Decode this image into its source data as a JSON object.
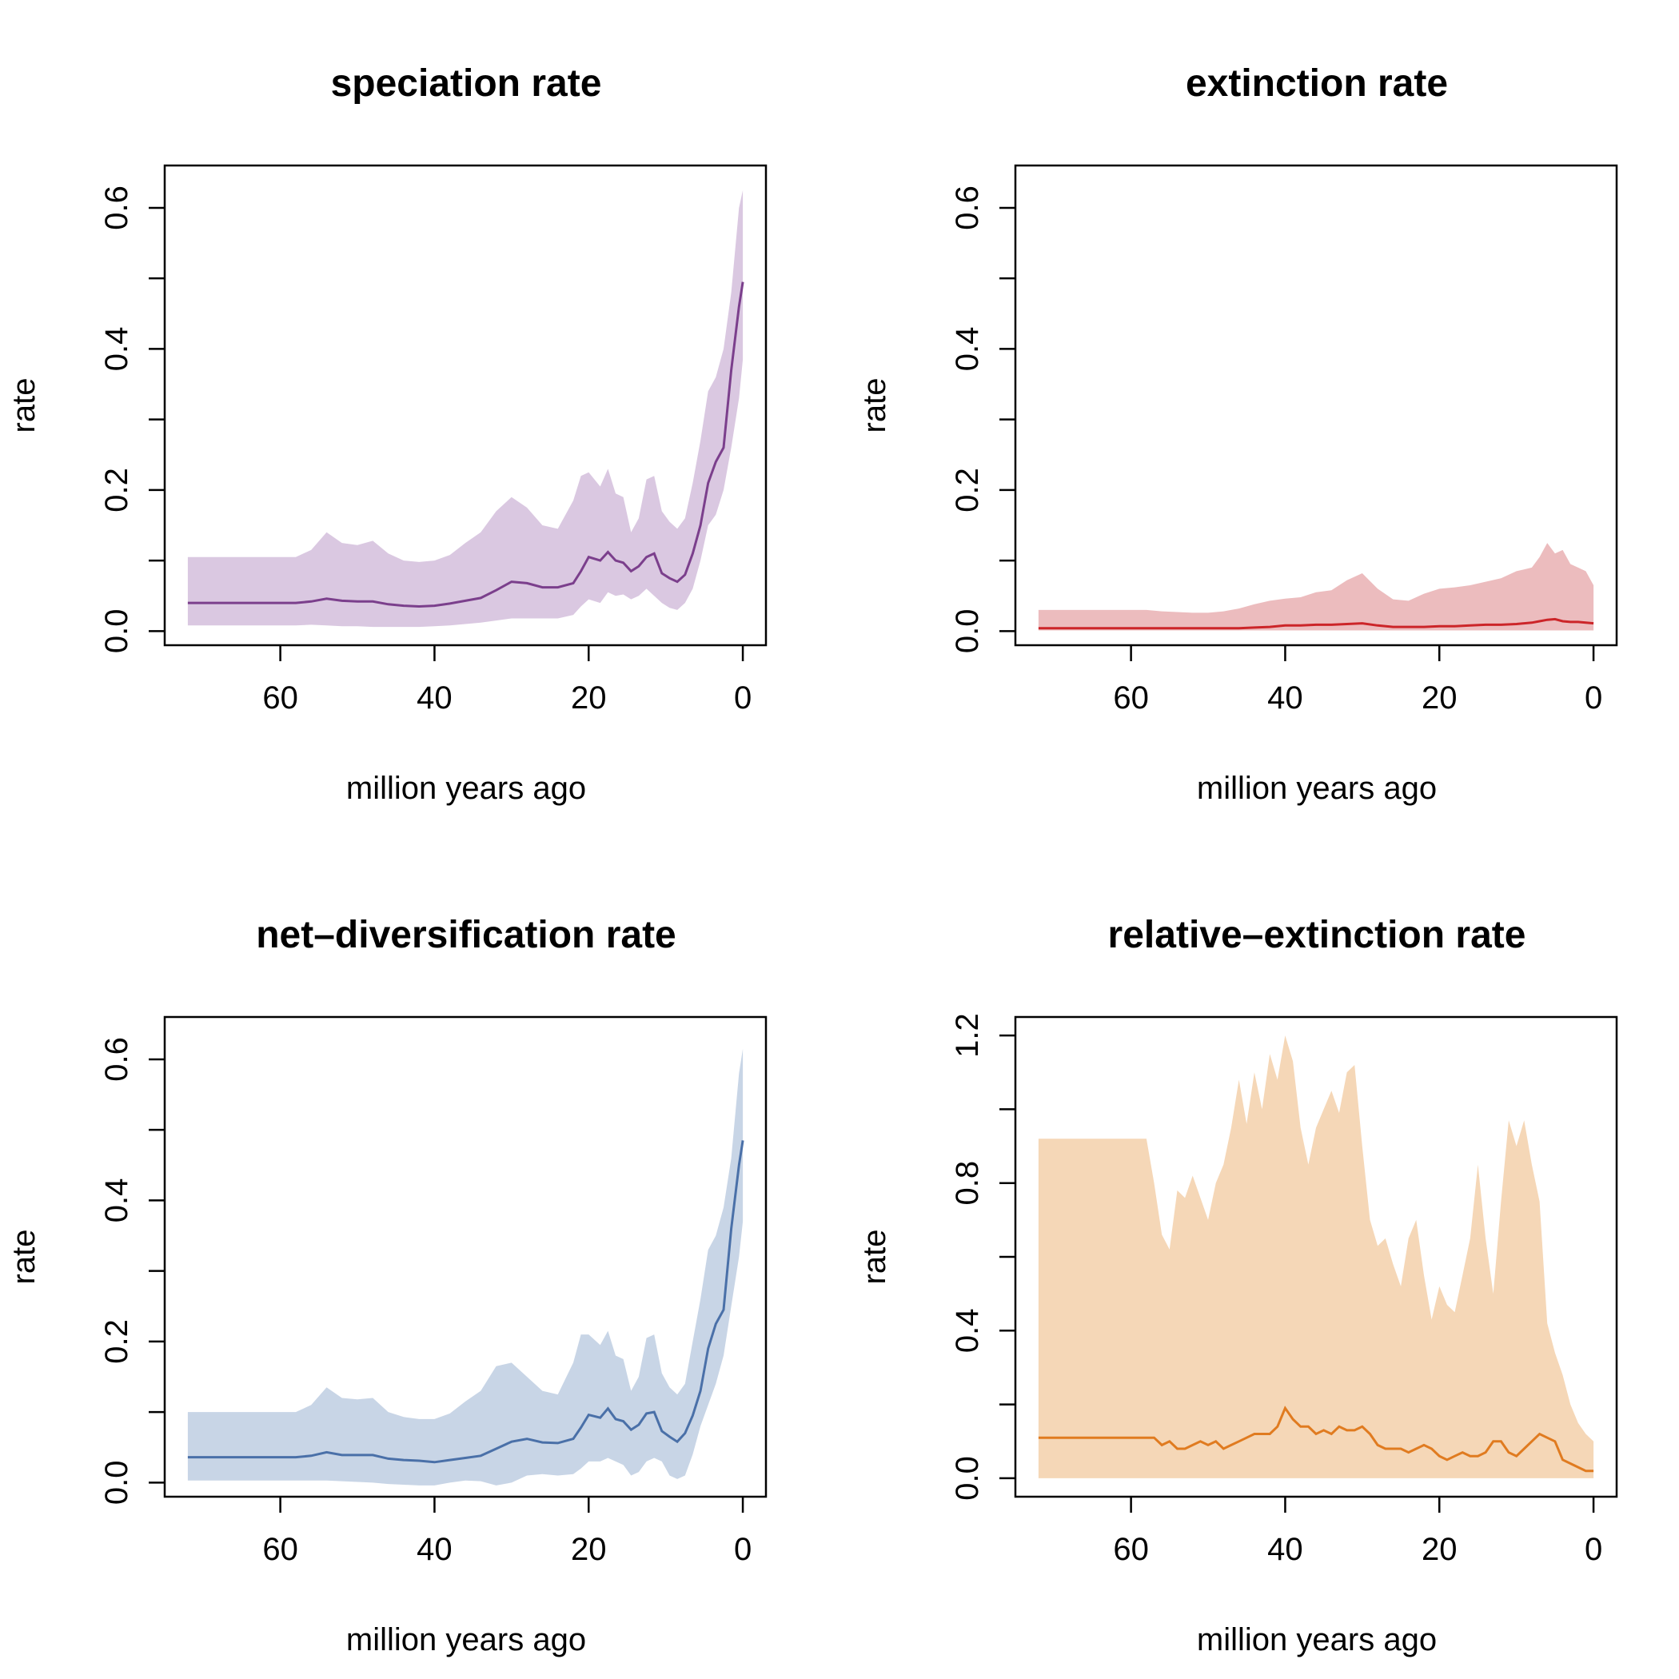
{
  "chart_data": [
    {
      "type": "area",
      "title": "speciation rate",
      "xlabel": "million years ago",
      "ylabel": "rate",
      "xlim": [
        75,
        -3
      ],
      "ylim": [
        -0.02,
        0.66
      ],
      "xticks": [
        60,
        40,
        20,
        0
      ],
      "xtick_labels": [
        "60",
        "40",
        "20",
        "0"
      ],
      "yticks": [
        0.0,
        0.1,
        0.2,
        0.3,
        0.4,
        0.5,
        0.6
      ],
      "ytick_labels": [
        "0.0",
        "",
        "0.2",
        "",
        "0.4",
        "",
        "0.6"
      ],
      "colors": {
        "line": "#7b3f8c",
        "band": "#dac8e1"
      },
      "series": [
        {
          "x": [
            72,
            58,
            56,
            54,
            52,
            50,
            48,
            46,
            44,
            42,
            40,
            38,
            36,
            34,
            32,
            30,
            28,
            26,
            24,
            22,
            21,
            20,
            18.5,
            17.5,
            16.5,
            15.5,
            14.5,
            13.5,
            12.5,
            11.5,
            10.5,
            9.5,
            8.5,
            7.5,
            6.5,
            5.5,
            4.5,
            3.5,
            2.5,
            1.5,
            0.5,
            0
          ],
          "values": [
            0.04,
            0.04,
            0.042,
            0.046,
            0.043,
            0.042,
            0.042,
            0.038,
            0.036,
            0.035,
            0.036,
            0.039,
            0.043,
            0.047,
            0.058,
            0.07,
            0.068,
            0.062,
            0.062,
            0.068,
            0.085,
            0.105,
            0.1,
            0.112,
            0.1,
            0.097,
            0.085,
            0.092,
            0.105,
            0.11,
            0.082,
            0.075,
            0.07,
            0.08,
            0.11,
            0.15,
            0.21,
            0.24,
            0.26,
            0.37,
            0.46,
            0.495
          ],
          "lower": [
            0.008,
            0.008,
            0.009,
            0.008,
            0.007,
            0.007,
            0.006,
            0.006,
            0.006,
            0.006,
            0.007,
            0.008,
            0.01,
            0.012,
            0.015,
            0.018,
            0.018,
            0.018,
            0.018,
            0.023,
            0.035,
            0.045,
            0.04,
            0.055,
            0.05,
            0.052,
            0.045,
            0.05,
            0.06,
            0.05,
            0.04,
            0.033,
            0.03,
            0.04,
            0.06,
            0.1,
            0.15,
            0.165,
            0.2,
            0.26,
            0.33,
            0.385
          ],
          "upper": [
            0.105,
            0.105,
            0.115,
            0.14,
            0.125,
            0.122,
            0.128,
            0.11,
            0.1,
            0.098,
            0.1,
            0.108,
            0.125,
            0.14,
            0.17,
            0.19,
            0.175,
            0.15,
            0.145,
            0.185,
            0.22,
            0.225,
            0.205,
            0.23,
            0.195,
            0.19,
            0.14,
            0.16,
            0.215,
            0.22,
            0.17,
            0.155,
            0.145,
            0.16,
            0.21,
            0.27,
            0.34,
            0.36,
            0.4,
            0.48,
            0.6,
            0.625
          ]
        }
      ]
    },
    {
      "type": "area",
      "title": "extinction rate",
      "xlabel": "million years ago",
      "ylabel": "rate",
      "xlim": [
        75,
        -3
      ],
      "ylim": [
        -0.02,
        0.66
      ],
      "xticks": [
        60,
        40,
        20,
        0
      ],
      "xtick_labels": [
        "60",
        "40",
        "20",
        "0"
      ],
      "yticks": [
        0.0,
        0.1,
        0.2,
        0.3,
        0.4,
        0.5,
        0.6
      ],
      "ytick_labels": [
        "0.0",
        "",
        "0.2",
        "",
        "0.4",
        "",
        "0.6"
      ],
      "colors": {
        "line": "#cc2529",
        "band": "#ecbcbe"
      },
      "series": [
        {
          "x": [
            72,
            58,
            56,
            54,
            52,
            50,
            48,
            46,
            44,
            42,
            40,
            38,
            36,
            34,
            32,
            30,
            28,
            26,
            24,
            22,
            20,
            18,
            16,
            14,
            12,
            10,
            8,
            7,
            6,
            5,
            4,
            3,
            2,
            1,
            0
          ],
          "values": [
            0.004,
            0.004,
            0.004,
            0.004,
            0.004,
            0.004,
            0.004,
            0.004,
            0.005,
            0.006,
            0.008,
            0.008,
            0.009,
            0.009,
            0.01,
            0.011,
            0.008,
            0.006,
            0.006,
            0.006,
            0.007,
            0.007,
            0.008,
            0.009,
            0.009,
            0.01,
            0.012,
            0.014,
            0.016,
            0.017,
            0.014,
            0.013,
            0.013,
            0.012,
            0.011
          ],
          "lower": [
            0.001,
            0.001,
            0.001,
            0.001,
            0.001,
            0.001,
            0.001,
            0.001,
            0.001,
            0.001,
            0.001,
            0.001,
            0.001,
            0.001,
            0.001,
            0.001,
            0.001,
            0.001,
            0.001,
            0.001,
            0.001,
            0.001,
            0.001,
            0.001,
            0.001,
            0.001,
            0.001,
            0.001,
            0.001,
            0.001,
            0.001,
            0.001,
            0.001,
            0.001,
            0.001
          ],
          "upper": [
            0.03,
            0.03,
            0.028,
            0.027,
            0.026,
            0.026,
            0.028,
            0.032,
            0.038,
            0.043,
            0.046,
            0.048,
            0.055,
            0.058,
            0.072,
            0.082,
            0.06,
            0.045,
            0.043,
            0.053,
            0.06,
            0.062,
            0.065,
            0.07,
            0.075,
            0.085,
            0.09,
            0.105,
            0.125,
            0.11,
            0.115,
            0.095,
            0.09,
            0.085,
            0.065
          ]
        }
      ]
    },
    {
      "type": "area",
      "title": "net–diversification rate",
      "xlabel": "million years ago",
      "ylabel": "rate",
      "xlim": [
        75,
        -3
      ],
      "ylim": [
        -0.02,
        0.66
      ],
      "xticks": [
        60,
        40,
        20,
        0
      ],
      "xtick_labels": [
        "60",
        "40",
        "20",
        "0"
      ],
      "yticks": [
        0.0,
        0.1,
        0.2,
        0.3,
        0.4,
        0.5,
        0.6
      ],
      "ytick_labels": [
        "0.0",
        "",
        "0.2",
        "",
        "0.4",
        "",
        "0.6"
      ],
      "colors": {
        "line": "#4a70a8",
        "band": "#c8d5e6"
      },
      "series": [
        {
          "x": [
            72,
            58,
            56,
            54,
            52,
            50,
            48,
            46,
            44,
            42,
            40,
            38,
            36,
            34,
            32,
            30,
            28,
            26,
            24,
            22,
            21,
            20,
            18.5,
            17.5,
            16.5,
            15.5,
            14.5,
            13.5,
            12.5,
            11.5,
            10.5,
            9.5,
            8.5,
            7.5,
            6.5,
            5.5,
            4.5,
            3.5,
            2.5,
            1.5,
            0.5,
            0
          ],
          "values": [
            0.036,
            0.036,
            0.038,
            0.043,
            0.039,
            0.039,
            0.039,
            0.034,
            0.032,
            0.031,
            0.029,
            0.032,
            0.035,
            0.038,
            0.048,
            0.058,
            0.062,
            0.057,
            0.056,
            0.062,
            0.078,
            0.096,
            0.092,
            0.105,
            0.09,
            0.087,
            0.075,
            0.082,
            0.098,
            0.1,
            0.073,
            0.065,
            0.058,
            0.07,
            0.095,
            0.13,
            0.19,
            0.225,
            0.245,
            0.36,
            0.45,
            0.485
          ],
          "lower": [
            0.003,
            0.003,
            0.003,
            0.003,
            0.002,
            0.001,
            0.0,
            -0.002,
            -0.003,
            -0.004,
            -0.004,
            0.0,
            0.003,
            0.002,
            -0.004,
            0.0,
            0.01,
            0.012,
            0.01,
            0.012,
            0.02,
            0.03,
            0.03,
            0.035,
            0.03,
            0.025,
            0.01,
            0.015,
            0.03,
            0.035,
            0.03,
            0.01,
            0.005,
            0.01,
            0.04,
            0.08,
            0.11,
            0.14,
            0.18,
            0.25,
            0.32,
            0.37
          ],
          "upper": [
            0.1,
            0.1,
            0.11,
            0.135,
            0.12,
            0.118,
            0.12,
            0.1,
            0.093,
            0.09,
            0.09,
            0.098,
            0.115,
            0.13,
            0.165,
            0.17,
            0.15,
            0.13,
            0.125,
            0.17,
            0.21,
            0.21,
            0.195,
            0.215,
            0.18,
            0.175,
            0.13,
            0.15,
            0.205,
            0.21,
            0.155,
            0.135,
            0.125,
            0.14,
            0.2,
            0.26,
            0.33,
            0.35,
            0.39,
            0.46,
            0.58,
            0.615
          ]
        }
      ]
    },
    {
      "type": "area",
      "title": "relative–extinction rate",
      "xlabel": "million years ago",
      "ylabel": "rate",
      "xlim": [
        75,
        -3
      ],
      "ylim": [
        -0.05,
        1.25
      ],
      "xticks": [
        60,
        40,
        20,
        0
      ],
      "xtick_labels": [
        "60",
        "40",
        "20",
        "0"
      ],
      "yticks": [
        0.0,
        0.2,
        0.4,
        0.6,
        0.8,
        1.0,
        1.2
      ],
      "ytick_labels": [
        "0.0",
        "",
        "0.4",
        "",
        "0.8",
        "",
        "1.2"
      ],
      "colors": {
        "line": "#e07b20",
        "band": "#f5d7b7"
      },
      "series": [
        {
          "x": [
            72,
            58,
            57,
            56,
            55,
            54,
            53,
            52,
            51,
            50,
            49,
            48,
            47,
            46,
            45,
            44,
            43,
            42,
            41,
            40,
            39,
            38,
            37,
            36,
            35,
            34,
            33,
            32,
            31,
            30,
            29,
            28,
            27,
            26,
            25,
            24,
            23,
            22,
            21,
            20,
            19,
            18,
            17,
            16,
            15,
            14,
            13,
            12,
            11,
            10,
            9,
            8,
            7,
            6,
            5,
            4,
            3,
            2,
            1,
            0
          ],
          "values": [
            0.11,
            0.11,
            0.11,
            0.09,
            0.1,
            0.08,
            0.08,
            0.09,
            0.1,
            0.09,
            0.1,
            0.08,
            0.09,
            0.1,
            0.11,
            0.12,
            0.12,
            0.12,
            0.14,
            0.19,
            0.16,
            0.14,
            0.14,
            0.12,
            0.13,
            0.12,
            0.14,
            0.13,
            0.13,
            0.14,
            0.12,
            0.09,
            0.08,
            0.08,
            0.08,
            0.07,
            0.08,
            0.09,
            0.08,
            0.06,
            0.05,
            0.06,
            0.07,
            0.06,
            0.06,
            0.07,
            0.1,
            0.1,
            0.07,
            0.06,
            0.08,
            0.1,
            0.12,
            0.11,
            0.1,
            0.05,
            0.04,
            0.03,
            0.02,
            0.02
          ],
          "lower": [
            0.0,
            0.0,
            0.0,
            0.0,
            0.0,
            0.0,
            0.0,
            0.0,
            0.0,
            0.0,
            0.0,
            0.0,
            0.0,
            0.0,
            0.0,
            0.0,
            0.0,
            0.0,
            0.0,
            0.0,
            0.0,
            0.0,
            0.0,
            0.0,
            0.0,
            0.0,
            0.0,
            0.0,
            0.0,
            0.0,
            0.0,
            0.0,
            0.0,
            0.0,
            0.0,
            0.0,
            0.0,
            0.0,
            0.0,
            0.0,
            0.0,
            0.0,
            0.0,
            0.0,
            0.0,
            0.0,
            0.0,
            0.0,
            0.0,
            0.0,
            0.0,
            0.0,
            0.0,
            0.0,
            0.0,
            0.0,
            0.0,
            0.0,
            0.0,
            0.0
          ],
          "upper": [
            0.92,
            0.92,
            0.8,
            0.66,
            0.62,
            0.78,
            0.76,
            0.82,
            0.76,
            0.7,
            0.8,
            0.85,
            0.95,
            1.08,
            0.96,
            1.1,
            1.0,
            1.15,
            1.08,
            1.2,
            1.13,
            0.95,
            0.85,
            0.95,
            1.0,
            1.05,
            0.99,
            1.1,
            1.12,
            0.9,
            0.7,
            0.63,
            0.65,
            0.58,
            0.52,
            0.65,
            0.7,
            0.55,
            0.43,
            0.52,
            0.47,
            0.45,
            0.55,
            0.65,
            0.85,
            0.65,
            0.5,
            0.75,
            0.97,
            0.9,
            0.97,
            0.85,
            0.75,
            0.42,
            0.34,
            0.28,
            0.2,
            0.15,
            0.12,
            0.1
          ]
        }
      ]
    }
  ]
}
